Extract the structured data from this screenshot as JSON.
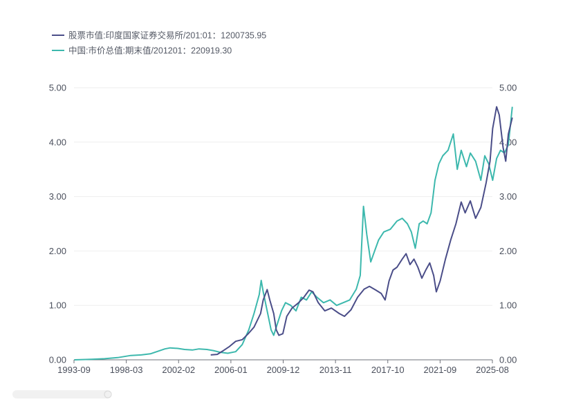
{
  "chart_data": {
    "type": "line",
    "title": "",
    "xlabel": "",
    "ylabel": "",
    "x_tick_labels": [
      "1993-09",
      "1998-03",
      "2002-02",
      "2006-01",
      "2009-12",
      "2013-11",
      "2017-10",
      "2021-09",
      "2025-08"
    ],
    "x_range": [
      1993.67,
      2025.58
    ],
    "y_left": {
      "ylim": [
        0,
        5
      ],
      "tick_labels": [
        "0.00",
        "1.00",
        "2.00",
        "3.00",
        "4.00",
        "5.00"
      ]
    },
    "y_right": {
      "ylim": [
        0,
        5
      ],
      "tick_labels": [
        "0.00",
        "1.00",
        "2.00",
        "3.00",
        "4.00",
        "5.00"
      ]
    },
    "legend_position": "top-left",
    "series": [
      {
        "name": "股票市值:印度国家证券交易所/201:01：1200735.95",
        "color": "#4a4d88",
        "axis": "left",
        "points": [
          [
            2004.1,
            0.09
          ],
          [
            2004.6,
            0.1
          ],
          [
            2005.0,
            0.16
          ],
          [
            2005.5,
            0.24
          ],
          [
            2006.0,
            0.34
          ],
          [
            2006.5,
            0.37
          ],
          [
            2007.0,
            0.49
          ],
          [
            2007.4,
            0.6
          ],
          [
            2007.9,
            0.85
          ],
          [
            2008.1,
            1.1
          ],
          [
            2008.4,
            1.29
          ],
          [
            2008.6,
            1.1
          ],
          [
            2008.9,
            0.85
          ],
          [
            2009.1,
            0.55
          ],
          [
            2009.3,
            0.45
          ],
          [
            2009.6,
            0.48
          ],
          [
            2009.9,
            0.8
          ],
          [
            2010.3,
            0.95
          ],
          [
            2010.8,
            1.05
          ],
          [
            2011.2,
            1.15
          ],
          [
            2011.6,
            1.28
          ],
          [
            2011.9,
            1.25
          ],
          [
            2012.3,
            1.05
          ],
          [
            2012.8,
            0.9
          ],
          [
            2013.3,
            0.95
          ],
          [
            2013.9,
            0.85
          ],
          [
            2014.3,
            0.8
          ],
          [
            2014.8,
            0.92
          ],
          [
            2015.3,
            1.15
          ],
          [
            2015.8,
            1.3
          ],
          [
            2016.2,
            1.35
          ],
          [
            2016.7,
            1.28
          ],
          [
            2017.1,
            1.22
          ],
          [
            2017.4,
            1.1
          ],
          [
            2017.7,
            1.45
          ],
          [
            2018.0,
            1.65
          ],
          [
            2018.3,
            1.7
          ],
          [
            2018.7,
            1.85
          ],
          [
            2019.0,
            1.95
          ],
          [
            2019.3,
            1.75
          ],
          [
            2019.6,
            1.85
          ],
          [
            2019.9,
            1.7
          ],
          [
            2020.2,
            1.5
          ],
          [
            2020.5,
            1.65
          ],
          [
            2020.8,
            1.78
          ],
          [
            2021.1,
            1.55
          ],
          [
            2021.3,
            1.25
          ],
          [
            2021.6,
            1.45
          ],
          [
            2022.0,
            1.85
          ],
          [
            2022.4,
            2.2
          ],
          [
            2022.8,
            2.5
          ],
          [
            2023.2,
            2.9
          ],
          [
            2023.5,
            2.7
          ],
          [
            2023.9,
            2.92
          ],
          [
            2024.3,
            2.6
          ],
          [
            2024.7,
            2.8
          ],
          [
            2025.1,
            3.25
          ],
          [
            2025.4,
            3.65
          ],
          [
            2025.6,
            4.25
          ],
          [
            2025.9,
            4.65
          ],
          [
            2026.1,
            4.5
          ],
          [
            2026.4,
            3.9
          ],
          [
            2026.6,
            3.65
          ],
          [
            2026.8,
            4.15
          ],
          [
            2027.1,
            4.45
          ]
        ]
      },
      {
        "name": "中国:市价总值:期末值/201201：220919.30",
        "color": "#3cb8ad",
        "axis": "right",
        "points": [
          [
            1993.7,
            0.0
          ],
          [
            1995.0,
            0.01
          ],
          [
            1996.0,
            0.02
          ],
          [
            1997.0,
            0.04
          ],
          [
            1998.0,
            0.08
          ],
          [
            1998.8,
            0.09
          ],
          [
            1999.5,
            0.11
          ],
          [
            2000.1,
            0.16
          ],
          [
            2000.6,
            0.2
          ],
          [
            2001.0,
            0.22
          ],
          [
            2001.6,
            0.21
          ],
          [
            2002.1,
            0.19
          ],
          [
            2002.7,
            0.18
          ],
          [
            2003.2,
            0.2
          ],
          [
            2003.8,
            0.19
          ],
          [
            2004.3,
            0.17
          ],
          [
            2004.8,
            0.14
          ],
          [
            2005.4,
            0.12
          ],
          [
            2006.0,
            0.15
          ],
          [
            2006.5,
            0.28
          ],
          [
            2007.0,
            0.55
          ],
          [
            2007.4,
            0.85
          ],
          [
            2007.8,
            1.2
          ],
          [
            2007.95,
            1.46
          ],
          [
            2008.1,
            1.25
          ],
          [
            2008.4,
            0.9
          ],
          [
            2008.7,
            0.55
          ],
          [
            2008.9,
            0.45
          ],
          [
            2009.1,
            0.6
          ],
          [
            2009.5,
            0.9
          ],
          [
            2009.8,
            1.05
          ],
          [
            2010.2,
            1.0
          ],
          [
            2010.6,
            0.9
          ],
          [
            2011.0,
            1.15
          ],
          [
            2011.4,
            1.1
          ],
          [
            2011.8,
            1.25
          ],
          [
            2012.2,
            1.15
          ],
          [
            2012.7,
            1.05
          ],
          [
            2013.2,
            1.1
          ],
          [
            2013.7,
            1.0
          ],
          [
            2014.2,
            1.05
          ],
          [
            2014.7,
            1.1
          ],
          [
            2015.2,
            1.3
          ],
          [
            2015.5,
            1.55
          ],
          [
            2015.75,
            2.82
          ],
          [
            2016.0,
            2.3
          ],
          [
            2016.3,
            1.8
          ],
          [
            2016.6,
            2.0
          ],
          [
            2016.9,
            2.2
          ],
          [
            2017.3,
            2.35
          ],
          [
            2017.8,
            2.4
          ],
          [
            2018.3,
            2.55
          ],
          [
            2018.7,
            2.6
          ],
          [
            2019.1,
            2.5
          ],
          [
            2019.4,
            2.35
          ],
          [
            2019.7,
            2.05
          ],
          [
            2020.0,
            2.5
          ],
          [
            2020.3,
            2.55
          ],
          [
            2020.6,
            2.5
          ],
          [
            2020.9,
            2.7
          ],
          [
            2021.2,
            3.3
          ],
          [
            2021.5,
            3.6
          ],
          [
            2021.8,
            3.75
          ],
          [
            2022.2,
            3.85
          ],
          [
            2022.6,
            4.15
          ],
          [
            2022.9,
            3.5
          ],
          [
            2023.2,
            3.85
          ],
          [
            2023.6,
            3.55
          ],
          [
            2023.9,
            3.8
          ],
          [
            2024.3,
            3.65
          ],
          [
            2024.7,
            3.3
          ],
          [
            2025.0,
            3.75
          ],
          [
            2025.3,
            3.6
          ],
          [
            2025.6,
            3.3
          ],
          [
            2025.9,
            3.7
          ],
          [
            2026.2,
            3.85
          ],
          [
            2026.5,
            3.8
          ],
          [
            2026.8,
            3.95
          ],
          [
            2027.1,
            4.65
          ]
        ]
      }
    ]
  },
  "footer": {
    "watermark_text": ""
  }
}
